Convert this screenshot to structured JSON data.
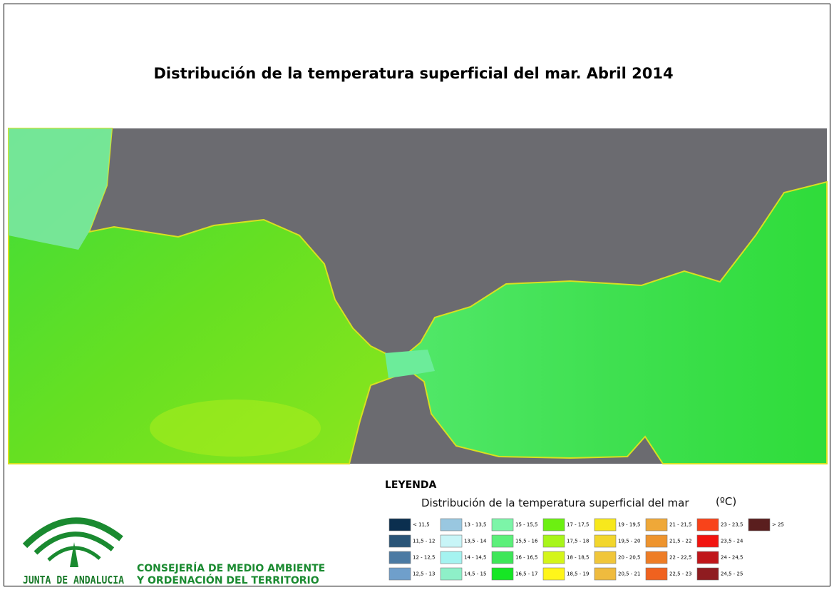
{
  "title": "Distribución de la temperatura superficial del mar. Abril 2014",
  "legend": {
    "heading": "LEYENDA",
    "subtitle": "Distribución de la temperatura superficial del mar",
    "unit": "(ºC)",
    "items": [
      {
        "label": "< 11,5",
        "color": "#0b2f4f"
      },
      {
        "label": "11,5 - 12",
        "color": "#2a5578"
      },
      {
        "label": "12 - 12,5",
        "color": "#4b7aa3"
      },
      {
        "label": "12,5 - 13",
        "color": "#6f9fcb"
      },
      {
        "label": "13 - 13,5",
        "color": "#99c7e0"
      },
      {
        "label": "13,5 - 14",
        "color": "#c8f5f7"
      },
      {
        "label": "14 - 14,5",
        "color": "#a5f3f0"
      },
      {
        "label": "14,5 - 15",
        "color": "#8ef0c8"
      },
      {
        "label": "15 - 15,5",
        "color": "#7cf5a8"
      },
      {
        "label": "15,5 - 16",
        "color": "#5cf07a"
      },
      {
        "label": "16 - 16,5",
        "color": "#3ee658"
      },
      {
        "label": "16,5 - 17",
        "color": "#16e625"
      },
      {
        "label": "17 - 17,5",
        "color": "#6cf011"
      },
      {
        "label": "17,5 - 18",
        "color": "#a8f51a"
      },
      {
        "label": "18 - 18,5",
        "color": "#d4f51a"
      },
      {
        "label": "18,5 - 19",
        "color": "#fff51a"
      },
      {
        "label": "19 - 19,5",
        "color": "#f7e81c"
      },
      {
        "label": "19,5 - 20",
        "color": "#f2d62c"
      },
      {
        "label": "20 - 20,5",
        "color": "#f0c63a"
      },
      {
        "label": "20,5 - 21",
        "color": "#efbb3e"
      },
      {
        "label": "21 - 21,5",
        "color": "#efa838"
      },
      {
        "label": "21,5 - 22",
        "color": "#ee942e"
      },
      {
        "label": "22 - 22,5",
        "color": "#ee7d26"
      },
      {
        "label": "22,5 - 23",
        "color": "#f0621f"
      },
      {
        "label": "23 - 23,5",
        "color": "#f8431a"
      },
      {
        "label": "23,5 - 24",
        "color": "#f2140f"
      },
      {
        "label": "24 - 24,5",
        "color": "#c0161a"
      },
      {
        "label": "24,5 - 25",
        "color": "#8f1c20"
      },
      {
        "label": "> 25",
        "color": "#5a1e1e"
      }
    ]
  },
  "logo": {
    "name": "JUNTA DE ANDALUCIA",
    "department": [
      "CONSEJERÍA DE MEDIO AMBIENTE",
      "Y ORDENACIÓN DEL TERRITORIO"
    ]
  }
}
